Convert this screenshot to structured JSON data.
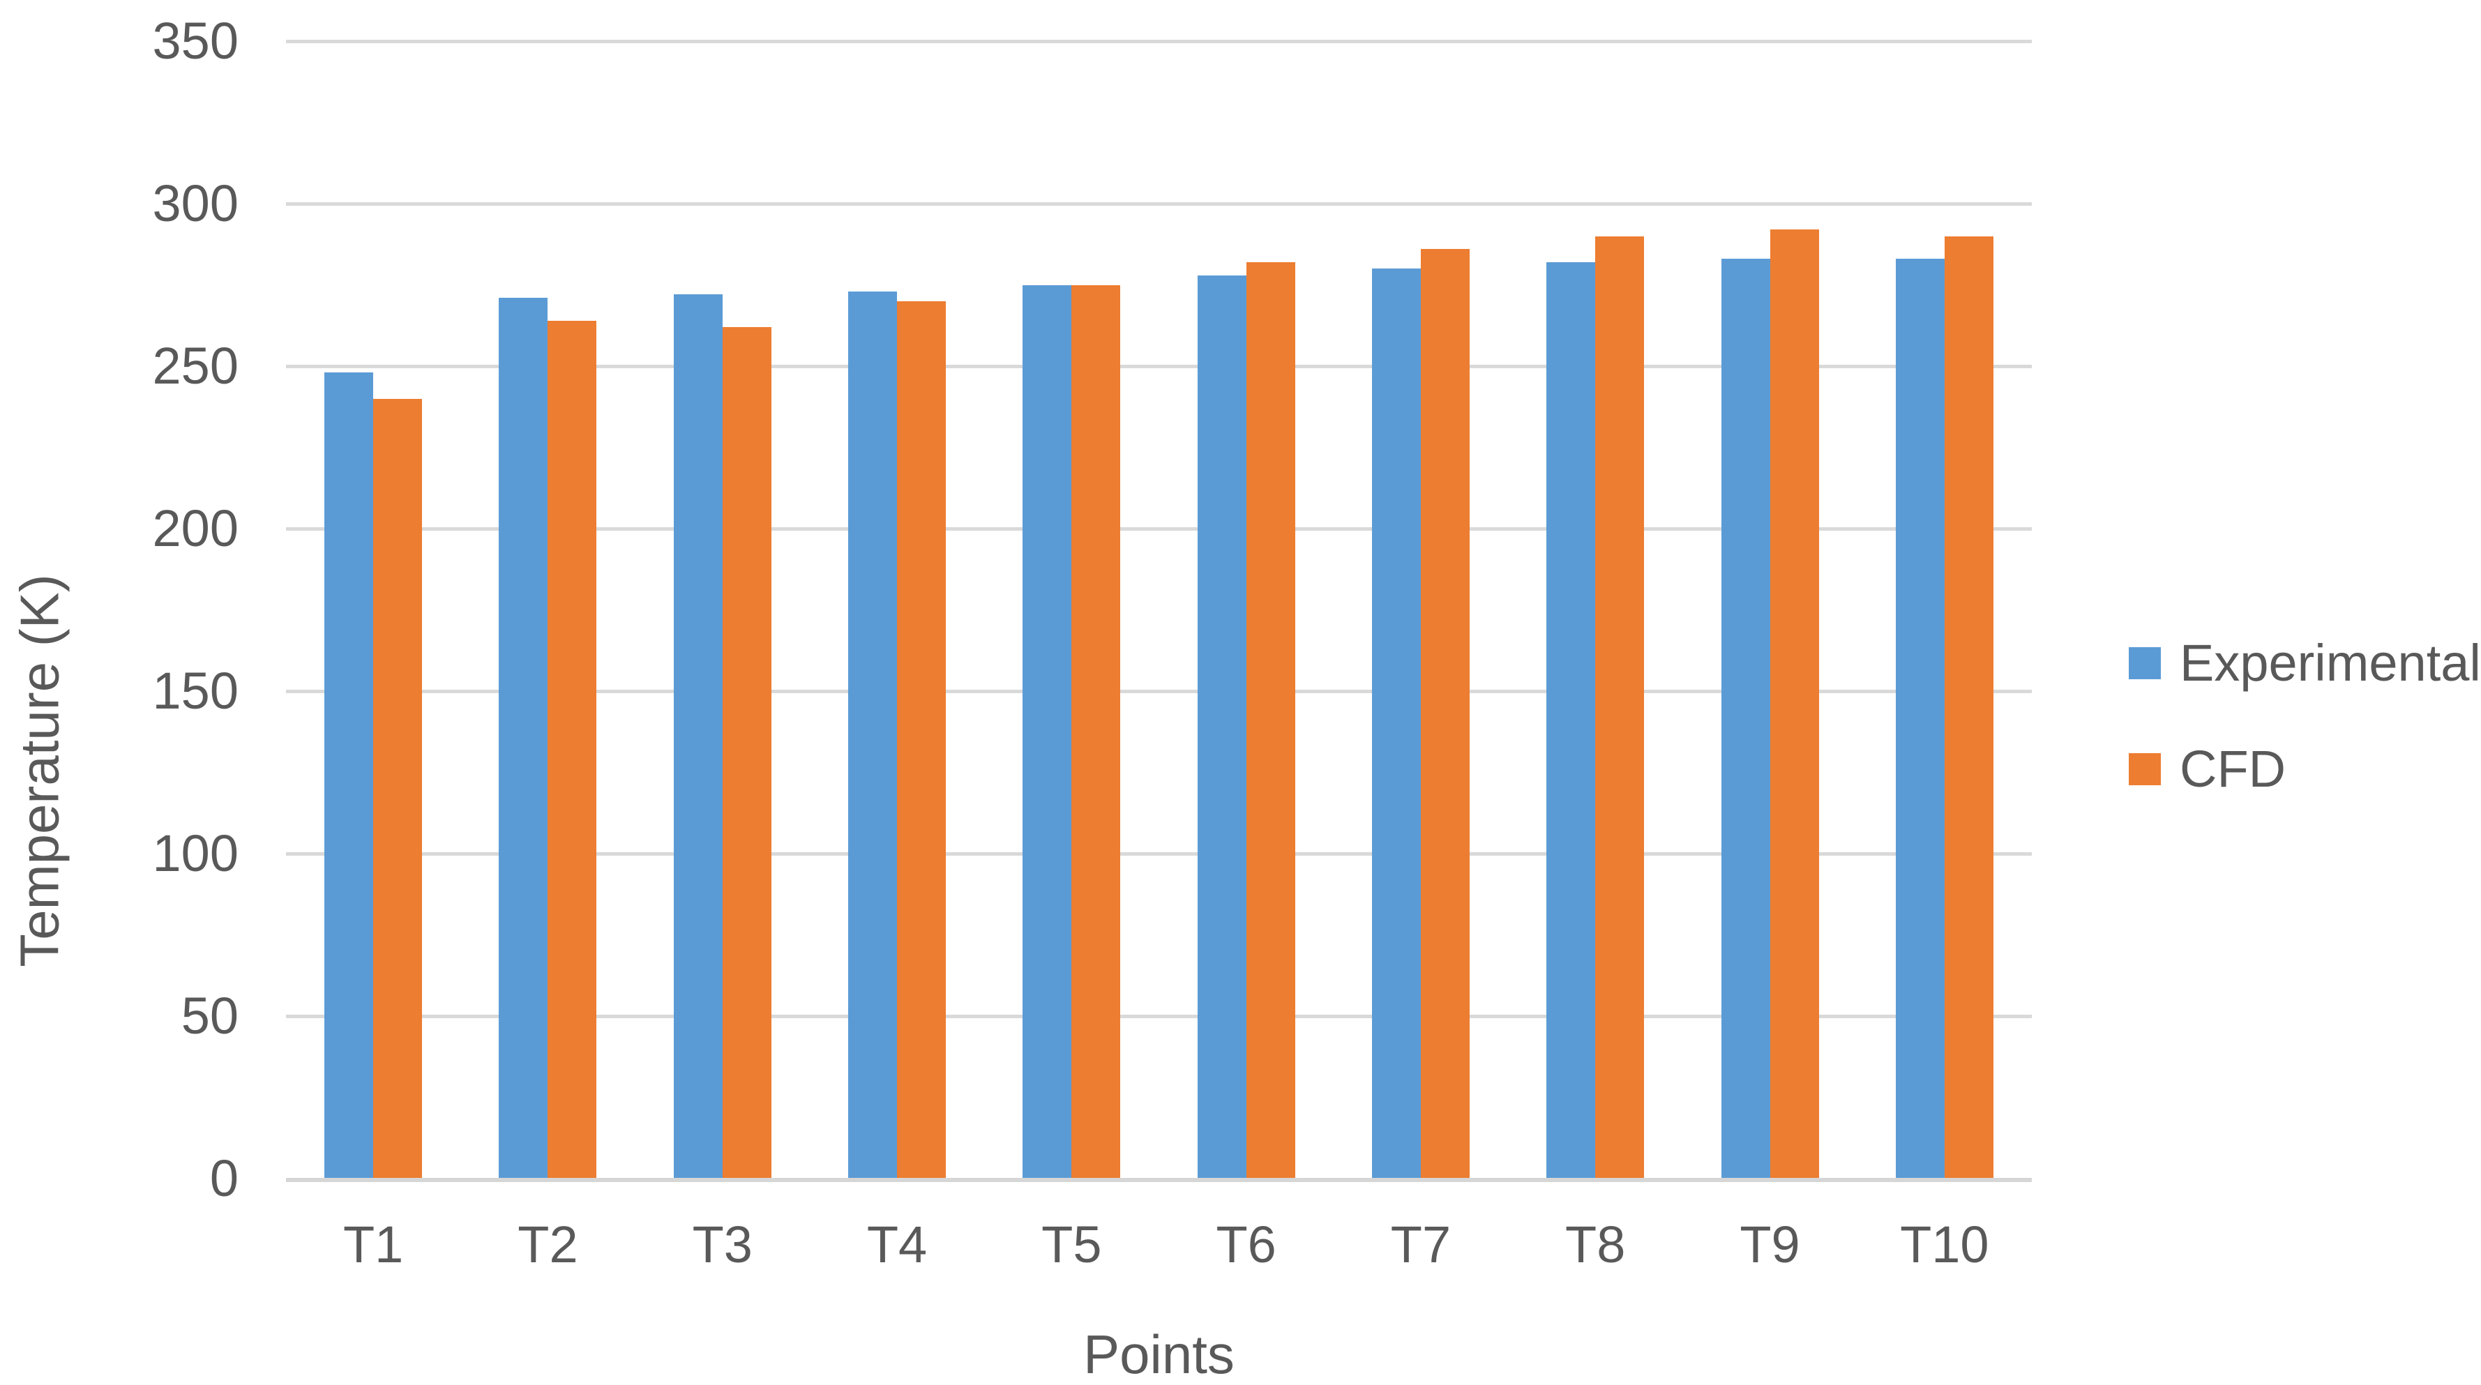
{
  "chart_data": {
    "type": "bar",
    "title": "",
    "categories": [
      "T1",
      "T2",
      "T3",
      "T4",
      "T5",
      "T6",
      "T7",
      "T8",
      "T9",
      "T10"
    ],
    "series": [
      {
        "name": "Experimental",
        "color": "#5B9BD5",
        "values": [
          248,
          271,
          272,
          273,
          275,
          278,
          280,
          282,
          283,
          283
        ]
      },
      {
        "name": "CFD",
        "color": "#ED7D31",
        "values": [
          240,
          264,
          262,
          270,
          275,
          282,
          286,
          290,
          292,
          290
        ]
      }
    ],
    "xlabel": "Points",
    "ylabel": "Temperature (K)",
    "ylim": [
      0,
      350
    ],
    "yticks": [
      0,
      50,
      100,
      150,
      200,
      250,
      300,
      350
    ],
    "grid": "horizontal",
    "legend_position": "right",
    "colors": {
      "gridline": "#D9D9D9",
      "axis_line": "#D6D6D6",
      "text": "#595959",
      "background": "#FFFFFF"
    }
  }
}
